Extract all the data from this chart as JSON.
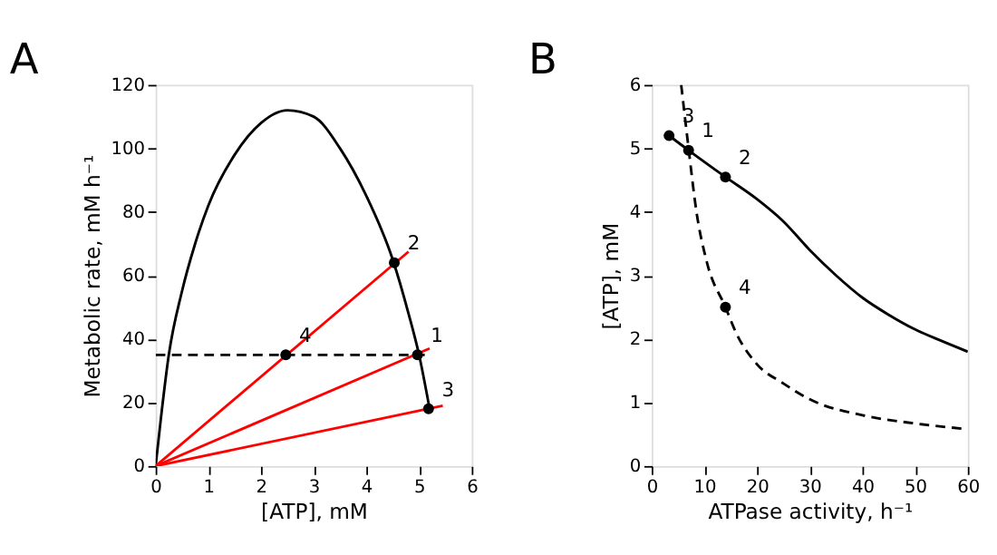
{
  "chart_data": [
    {
      "type": "line",
      "title": "A",
      "xlabel": "[ATP], mM",
      "ylabel": "Metabolic rate, mM h⁻¹",
      "xlim": [
        0,
        6
      ],
      "ylim": [
        0,
        120
      ],
      "xticks": [
        0,
        1,
        2,
        3,
        4,
        5,
        6
      ],
      "yticks": [
        0,
        20,
        40,
        60,
        80,
        100,
        120
      ],
      "grid": false,
      "series": [
        {
          "color": "#000000",
          "line_style": "solid",
          "x": [
            0,
            0.1,
            0.25,
            0.5,
            0.75,
            1,
            1.5,
            2,
            2.5,
            3,
            3.5,
            4,
            4.5,
            4.8,
            5,
            5.2
          ],
          "values": [
            0,
            15,
            35,
            55,
            70,
            82,
            98,
            108,
            112,
            110,
            100,
            85,
            65,
            48,
            35,
            18
          ]
        },
        {
          "color": "#ff0000",
          "line_style": "solid",
          "x": [
            0,
            4.8
          ],
          "values": [
            0,
            67.5
          ]
        },
        {
          "color": "#ff0000",
          "line_style": "solid",
          "x": [
            0,
            5.2
          ],
          "values": [
            0,
            37
          ]
        },
        {
          "color": "#ff0000",
          "line_style": "solid",
          "x": [
            0,
            5.45
          ],
          "values": [
            0,
            19
          ]
        },
        {
          "color": "#000000",
          "line_style": "dashed",
          "x": [
            0,
            5.18
          ],
          "values": [
            35,
            35
          ]
        },
        {
          "type": "scatter",
          "color": "#000000",
          "marker": "circle",
          "x": [
            4.97,
            4.53,
            5.18,
            2.47
          ],
          "values": [
            35,
            64,
            18,
            35
          ]
        }
      ],
      "annotations": [
        {
          "text": "1",
          "x": 4.97,
          "y": 35
        },
        {
          "text": "2",
          "x": 4.53,
          "y": 64
        },
        {
          "text": "3",
          "x": 5.18,
          "y": 18
        },
        {
          "text": "4",
          "x": 2.47,
          "y": 35
        }
      ]
    },
    {
      "type": "line",
      "title": "B",
      "xlabel": "ATPase activity, h⁻¹",
      "ylabel": "[ATP], mM",
      "xlim": [
        0,
        60
      ],
      "ylim": [
        0,
        6
      ],
      "xticks": [
        0,
        10,
        20,
        30,
        40,
        50,
        60
      ],
      "yticks": [
        0,
        1,
        2,
        3,
        4,
        5,
        6
      ],
      "grid": false,
      "series": [
        {
          "color": "#000000",
          "line_style": "solid",
          "x": [
            3.3,
            7,
            14,
            20,
            25,
            30,
            35,
            40,
            45,
            50,
            55,
            60
          ],
          "values": [
            5.2,
            4.97,
            4.55,
            4.2,
            3.85,
            3.4,
            3.0,
            2.65,
            2.38,
            2.15,
            1.97,
            1.8
          ]
        },
        {
          "color": "#000000",
          "line_style": "dashed",
          "x": [
            5.6,
            7,
            8.5,
            10.5,
            14,
            16,
            20,
            25,
            30,
            40,
            50,
            60
          ],
          "values": [
            6,
            5.0,
            4,
            3.2,
            2.5,
            2.1,
            1.6,
            1.3,
            1.05,
            0.8,
            0.67,
            0.58
          ]
        },
        {
          "type": "scatter",
          "color": "#000000",
          "marker": "circle",
          "x": [
            7,
            14,
            3.3,
            14
          ],
          "values": [
            4.97,
            4.55,
            5.2,
            2.5
          ]
        }
      ],
      "annotations": [
        {
          "text": "1",
          "x": 7,
          "y": 4.97
        },
        {
          "text": "2",
          "x": 14,
          "y": 4.55
        },
        {
          "text": "3",
          "x": 3.3,
          "y": 5.2
        },
        {
          "text": "4",
          "x": 14,
          "y": 2.5
        }
      ]
    }
  ]
}
